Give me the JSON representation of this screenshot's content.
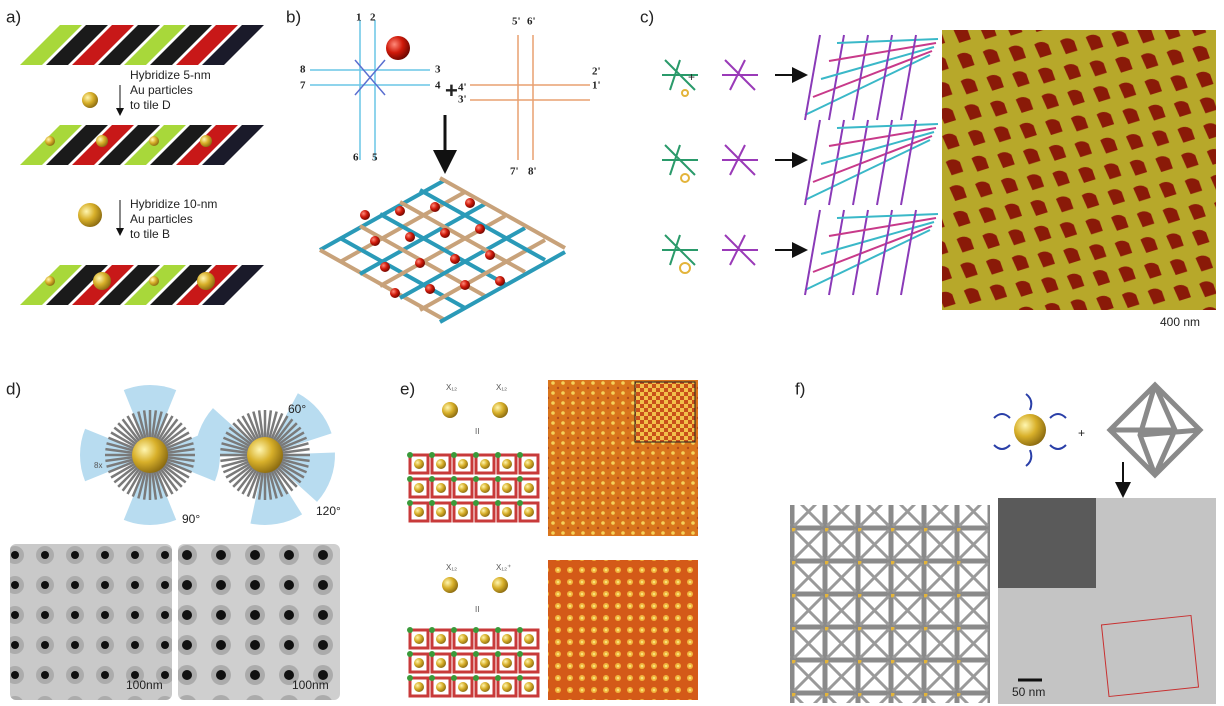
{
  "panels": {
    "a": {
      "label": "a)",
      "steps": [
        {
          "lines": [
            "Hybridize 5-nm",
            "Au particles",
            "to tile D"
          ]
        },
        {
          "lines": [
            "Hybridize 10-nm",
            "Au particles",
            "to tile B"
          ]
        }
      ]
    },
    "b": {
      "label": "b)",
      "arms": [
        "1",
        "2",
        "3",
        "4",
        "5",
        "6",
        "7",
        "8"
      ],
      "arms_prime": [
        "1'",
        "2'",
        "3'",
        "4'",
        "5'",
        "6'",
        "7'",
        "8'"
      ],
      "plus": "+"
    },
    "c": {
      "label": "c)",
      "plus": "+",
      "scale_bar": "400 nm"
    },
    "d": {
      "label": "d)",
      "multiplier": "8x",
      "angles": [
        "90°",
        "60°",
        "120°"
      ],
      "scale_bars": [
        "100nm",
        "100nm"
      ]
    },
    "e": {
      "label": "e)",
      "tile_labels": [
        "X₁₂",
        "X₁₂",
        "X₁₂",
        "X₁₂⁺"
      ],
      "roman": [
        "II",
        "II"
      ]
    },
    "f": {
      "label": "f)",
      "plus": "+",
      "scale_bar": "50 nm"
    }
  }
}
